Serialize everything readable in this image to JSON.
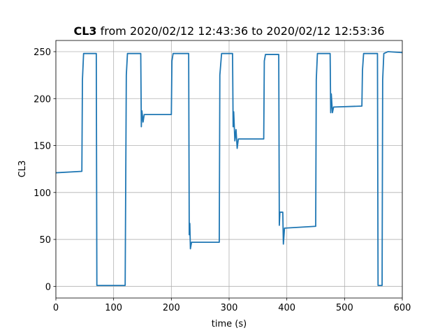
{
  "chart_data": {
    "type": "line",
    "title_bold": "CL3",
    "title": "from 2020/02/12 12:43:36 to 2020/02/12 12:53:36",
    "xlabel": "time (s)",
    "ylabel": "CL3",
    "color": "#1f77b4",
    "grid": true,
    "xlim": [
      0,
      600
    ],
    "ylim": [
      -12.4,
      261.9
    ],
    "xticks": [
      0,
      100,
      200,
      300,
      400,
      500,
      600
    ],
    "yticks": [
      0,
      50,
      100,
      150,
      200,
      250
    ],
    "x": [
      0,
      45,
      46,
      48,
      70,
      71,
      120,
      122,
      124,
      147,
      148,
      149,
      151,
      153,
      200,
      201,
      203,
      230,
      231,
      232,
      233,
      235,
      283,
      284,
      287,
      306,
      307,
      308,
      310,
      312,
      314,
      316,
      360,
      361,
      363,
      386,
      387,
      388,
      393,
      394,
      396,
      450,
      451,
      453,
      475,
      476,
      477,
      479,
      481,
      530,
      531,
      533,
      557,
      558,
      565,
      566,
      568,
      575,
      600
    ],
    "values": [
      121,
      122.5,
      220,
      248,
      248,
      1,
      1,
      225,
      248,
      248,
      170,
      187,
      175,
      183,
      183,
      240,
      248,
      248,
      55,
      67,
      40,
      47,
      47,
      225,
      248,
      248,
      170,
      186,
      155,
      167,
      147,
      157,
      157,
      240,
      247,
      247,
      65,
      79,
      79,
      45,
      62,
      64,
      220,
      248,
      248,
      185,
      205,
      185,
      191,
      192,
      230,
      248,
      248,
      1,
      1,
      220,
      248,
      250,
      249
    ]
  }
}
